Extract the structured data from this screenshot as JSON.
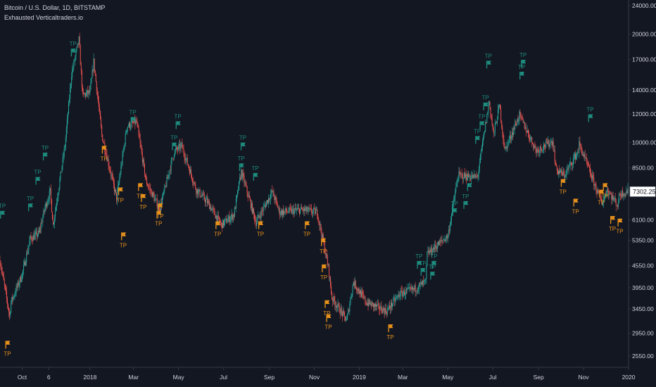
{
  "header": {
    "symbol_line": "Bitcoin / U.S. Dollar, 1D, BITSTAMP",
    "indicator_line": "Exhausted Verticaltraders.io"
  },
  "colors": {
    "background": "#131722",
    "up_candle": "#26a69a",
    "down_candle": "#ef5350",
    "tp_long": "#1e8c7e",
    "tp_short": "#e8921c",
    "axis_line": "#363a45",
    "axis_text": "#d1d4dc"
  },
  "chart_data": {
    "type": "candlestick",
    "y_scale": "log",
    "ylim": [
      2450,
      24000
    ],
    "y_ticks": [
      {
        "label": "24000.00",
        "value": 24000
      },
      {
        "label": "20000.00",
        "value": 20000
      },
      {
        "label": "17000.00",
        "value": 17000
      },
      {
        "label": "14000.00",
        "value": 14000
      },
      {
        "label": "12000.00",
        "value": 12000
      },
      {
        "label": "10000.00",
        "value": 10000
      },
      {
        "label": "8500.00",
        "value": 8500
      },
      {
        "label": "6100.00",
        "value": 6100
      },
      {
        "label": "5350.00",
        "value": 5350
      },
      {
        "label": "4550.00",
        "value": 4550
      },
      {
        "label": "3950.00",
        "value": 3950
      },
      {
        "label": "3450.00",
        "value": 3450
      },
      {
        "label": "2950.00",
        "value": 2950
      },
      {
        "label": "2550.00",
        "value": 2550
      }
    ],
    "last_price": {
      "label": "7302.25",
      "value": 7302.25
    },
    "xlim": [
      "2017-09-01",
      "2019-12-31"
    ],
    "x_ticks": [
      {
        "label": "Oct",
        "date": "2017-10-01"
      },
      {
        "label": "6",
        "date": "2017-11-06"
      },
      {
        "label": "2018",
        "date": "2018-01-01"
      },
      {
        "label": "Mar",
        "date": "2018-03-01"
      },
      {
        "label": "May",
        "date": "2018-05-01"
      },
      {
        "label": "Jul",
        "date": "2018-07-01"
      },
      {
        "label": "Sep",
        "date": "2018-09-01"
      },
      {
        "label": "Nov",
        "date": "2018-11-01"
      },
      {
        "label": "2019",
        "date": "2019-01-01"
      },
      {
        "label": "Mar",
        "date": "2019-03-01"
      },
      {
        "label": "May",
        "date": "2019-05-01"
      },
      {
        "label": "Jul",
        "date": "2019-07-01"
      },
      {
        "label": "Sep",
        "date": "2019-09-01"
      },
      {
        "label": "Nov",
        "date": "2019-11-01"
      },
      {
        "label": "2020",
        "date": "2020-01-01"
      }
    ],
    "price_path": [
      [
        "2017-09-01",
        4700
      ],
      [
        "2017-09-14",
        3300
      ],
      [
        "2017-09-16",
        3600
      ],
      [
        "2017-10-01",
        4300
      ],
      [
        "2017-10-12",
        5400
      ],
      [
        "2017-10-24",
        5600
      ],
      [
        "2017-11-01",
        6600
      ],
      [
        "2017-11-08",
        7300
      ],
      [
        "2017-11-12",
        5900
      ],
      [
        "2017-11-28",
        9800
      ],
      [
        "2017-12-07",
        15500
      ],
      [
        "2017-12-17",
        19300
      ],
      [
        "2017-12-22",
        13500
      ],
      [
        "2018-01-01",
        13800
      ],
      [
        "2018-01-06",
        16800
      ],
      [
        "2018-01-17",
        10500
      ],
      [
        "2018-02-06",
        7000
      ],
      [
        "2018-02-20",
        11100
      ],
      [
        "2018-03-05",
        11400
      ],
      [
        "2018-03-18",
        7800
      ],
      [
        "2018-04-01",
        6800
      ],
      [
        "2018-04-06",
        6600
      ],
      [
        "2018-04-25",
        9400
      ],
      [
        "2018-05-05",
        9800
      ],
      [
        "2018-05-25",
        7400
      ],
      [
        "2018-06-10",
        6800
      ],
      [
        "2018-06-28",
        5900
      ],
      [
        "2018-07-15",
        6300
      ],
      [
        "2018-07-25",
        8300
      ],
      [
        "2018-08-14",
        6000
      ],
      [
        "2018-09-05",
        7300
      ],
      [
        "2018-09-15",
        6400
      ],
      [
        "2018-10-15",
        6500
      ],
      [
        "2018-11-05",
        6400
      ],
      [
        "2018-11-20",
        4500
      ],
      [
        "2018-11-25",
        3700
      ],
      [
        "2018-12-15",
        3200
      ],
      [
        "2018-12-24",
        4100
      ],
      [
        "2019-01-10",
        3600
      ],
      [
        "2019-02-07",
        3400
      ],
      [
        "2019-02-25",
        3800
      ],
      [
        "2019-03-15",
        3900
      ],
      [
        "2019-04-01",
        4100
      ],
      [
        "2019-04-03",
        4900
      ],
      [
        "2019-05-01",
        5500
      ],
      [
        "2019-05-15",
        8100
      ],
      [
        "2019-06-10",
        8000
      ],
      [
        "2019-06-26",
        13000
      ],
      [
        "2019-07-02",
        10500
      ],
      [
        "2019-07-10",
        12700
      ],
      [
        "2019-07-17",
        9500
      ],
      [
        "2019-08-06",
        11900
      ],
      [
        "2019-08-29",
        9500
      ],
      [
        "2019-09-20",
        10100
      ],
      [
        "2019-09-25",
        8400
      ],
      [
        "2019-10-06",
        8100
      ],
      [
        "2019-10-25",
        9500
      ],
      [
        "2019-10-26",
        9900
      ],
      [
        "2019-11-01",
        9200
      ],
      [
        "2019-11-22",
        7100
      ],
      [
        "2019-11-26",
        6800
      ],
      [
        "2019-12-03",
        7400
      ],
      [
        "2019-12-17",
        6700
      ],
      [
        "2019-12-20",
        7200
      ],
      [
        "2019-12-30",
        7300
      ]
    ],
    "tp_signals": [
      {
        "side": "long",
        "label": "TP",
        "date": "2017-09-04",
        "price": 6200
      },
      {
        "side": "short",
        "label": "TP",
        "date": "2017-09-11",
        "price": 2700
      },
      {
        "side": "long",
        "label": "TP",
        "date": "2017-10-12",
        "price": 6500
      },
      {
        "side": "long",
        "label": "TP",
        "date": "2017-10-22",
        "price": 7700
      },
      {
        "side": "long",
        "label": "TP",
        "date": "2017-11-01",
        "price": 9000
      },
      {
        "side": "long",
        "label": "TP",
        "date": "2017-12-09",
        "price": 17500
      },
      {
        "side": "short",
        "label": "TP",
        "date": "2018-01-20",
        "price": 9400
      },
      {
        "side": "short",
        "label": "TP",
        "date": "2018-02-11",
        "price": 7200
      },
      {
        "side": "short",
        "label": "TP",
        "date": "2018-02-15",
        "price": 5400
      },
      {
        "side": "long",
        "label": "TP",
        "date": "2018-02-28",
        "price": 11300
      },
      {
        "side": "short",
        "label": "TP",
        "date": "2018-03-10",
        "price": 7400
      },
      {
        "side": "short",
        "label": "TP",
        "date": "2018-03-14",
        "price": 6900
      },
      {
        "side": "short",
        "label": "TP",
        "date": "2018-04-04",
        "price": 6200
      },
      {
        "side": "short",
        "label": "TP",
        "date": "2018-04-06",
        "price": 6500
      },
      {
        "side": "long",
        "label": "TP",
        "date": "2018-04-25",
        "price": 9600
      },
      {
        "side": "long",
        "label": "TP",
        "date": "2018-04-30",
        "price": 11000
      },
      {
        "side": "short",
        "label": "TP",
        "date": "2018-06-23",
        "price": 5800
      },
      {
        "side": "long",
        "label": "TP",
        "date": "2018-07-25",
        "price": 8400
      },
      {
        "side": "long",
        "label": "TP",
        "date": "2018-07-27",
        "price": 9600
      },
      {
        "side": "long",
        "label": "TP",
        "date": "2018-08-13",
        "price": 7900
      },
      {
        "side": "short",
        "label": "TP",
        "date": "2018-08-20",
        "price": 5800
      },
      {
        "side": "short",
        "label": "TP",
        "date": "2018-10-22",
        "price": 5800
      },
      {
        "side": "short",
        "label": "TP",
        "date": "2018-11-13",
        "price": 5200
      },
      {
        "side": "short",
        "label": "TP",
        "date": "2018-11-14",
        "price": 4400
      },
      {
        "side": "short",
        "label": "TP",
        "date": "2018-11-18",
        "price": 3500
      },
      {
        "side": "short",
        "label": "TP",
        "date": "2018-11-20",
        "price": 3200
      },
      {
        "side": "short",
        "label": "TP",
        "date": "2019-02-12",
        "price": 3000
      },
      {
        "side": "long",
        "label": "TP",
        "date": "2019-03-23",
        "price": 4500
      },
      {
        "side": "long",
        "label": "TP",
        "date": "2019-03-28",
        "price": 4300
      },
      {
        "side": "long",
        "label": "TP",
        "date": "2019-04-10",
        "price": 4200
      },
      {
        "side": "long",
        "label": "TP",
        "date": "2019-04-12",
        "price": 4500
      },
      {
        "side": "long",
        "label": "TP",
        "date": "2019-05-10",
        "price": 6300
      },
      {
        "side": "long",
        "label": "TP",
        "date": "2019-05-25",
        "price": 6600
      },
      {
        "side": "long",
        "label": "TP",
        "date": "2019-05-30",
        "price": 7400
      },
      {
        "side": "long",
        "label": "TP",
        "date": "2019-06-10",
        "price": 10000
      },
      {
        "side": "long",
        "label": "TP",
        "date": "2019-06-16",
        "price": 11000
      },
      {
        "side": "long",
        "label": "TP",
        "date": "2019-06-21",
        "price": 12400
      },
      {
        "side": "long",
        "label": "TP",
        "date": "2019-06-25",
        "price": 16200
      },
      {
        "side": "long",
        "label": "TP",
        "date": "2019-08-09",
        "price": 15100
      },
      {
        "side": "long",
        "label": "TP",
        "date": "2019-08-11",
        "price": 16300
      },
      {
        "side": "short",
        "label": "TP",
        "date": "2019-10-04",
        "price": 7600
      },
      {
        "side": "short",
        "label": "TP",
        "date": "2019-10-21",
        "price": 6700
      },
      {
        "side": "long",
        "label": "TP",
        "date": "2019-11-10",
        "price": 11500
      },
      {
        "side": "short",
        "label": "TP",
        "date": "2019-11-25",
        "price": 7100
      },
      {
        "side": "short",
        "label": "TP",
        "date": "2019-11-30",
        "price": 7400
      },
      {
        "side": "short",
        "label": "TP",
        "date": "2019-12-10",
        "price": 6000
      },
      {
        "side": "short",
        "label": "TP",
        "date": "2019-12-20",
        "price": 5900
      }
    ]
  }
}
